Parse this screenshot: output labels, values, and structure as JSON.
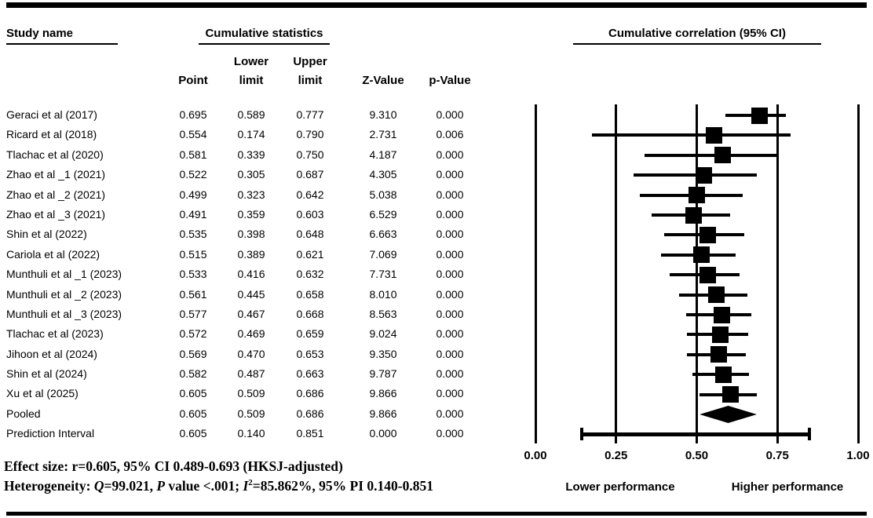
{
  "colors": {
    "ink": "#000000",
    "background": "#ffffff"
  },
  "table": {
    "header": {
      "study_name": "Study name",
      "group_title": "Cumulative statistics",
      "col_point": "Point",
      "col_lower_line1": "Lower",
      "col_lower_line2": "limit",
      "col_upper_line1": "Upper",
      "col_upper_line2": "limit",
      "col_z": "Z-Value",
      "col_p": "p-Value"
    }
  },
  "plot": {
    "title": "Cumulative correlation (95% CI)",
    "xlabel_left": "Lower performance",
    "xlabel_right": "Higher performance"
  },
  "chart_data": {
    "type": "forest",
    "title": "Cumulative correlation (95% CI)",
    "xlim": [
      0,
      1
    ],
    "x_ticks": [
      0,
      0.25,
      0.5,
      0.75,
      1
    ],
    "x_tick_labels": [
      "0.00",
      "0.25",
      "0.50",
      "0.75",
      "1.00"
    ],
    "grid": "vertical-lines-at-ticks",
    "columns": [
      "Point",
      "Lower limit",
      "Upper limit",
      "Z-Value",
      "p-Value"
    ],
    "rows": [
      {
        "name": "Geraci et al (2017)",
        "marker": "square",
        "point": "0.695",
        "lower": "0.589",
        "upper": "0.777",
        "z": "9.310",
        "p": "0.000"
      },
      {
        "name": "Ricard et al (2018)",
        "marker": "square",
        "point": "0.554",
        "lower": "0.174",
        "upper": "0.790",
        "z": "2.731",
        "p": "0.006"
      },
      {
        "name": "Tlachac et al (2020)",
        "marker": "square",
        "point": "0.581",
        "lower": "0.339",
        "upper": "0.750",
        "z": "4.187",
        "p": "0.000"
      },
      {
        "name": "Zhao et al _1 (2021)",
        "marker": "square",
        "point": "0.522",
        "lower": "0.305",
        "upper": "0.687",
        "z": "4.305",
        "p": "0.000"
      },
      {
        "name": "Zhao et al _2 (2021)",
        "marker": "square",
        "point": "0.499",
        "lower": "0.323",
        "upper": "0.642",
        "z": "5.038",
        "p": "0.000"
      },
      {
        "name": "Zhao et al _3 (2021)",
        "marker": "square",
        "point": "0.491",
        "lower": "0.359",
        "upper": "0.603",
        "z": "6.529",
        "p": "0.000"
      },
      {
        "name": "Shin et al (2022)",
        "marker": "square",
        "point": "0.535",
        "lower": "0.398",
        "upper": "0.648",
        "z": "6.663",
        "p": "0.000"
      },
      {
        "name": "Cariola et al (2022)",
        "marker": "square",
        "point": "0.515",
        "lower": "0.389",
        "upper": "0.621",
        "z": "7.069",
        "p": "0.000"
      },
      {
        "name": "Munthuli et al _1 (2023)",
        "marker": "square",
        "point": "0.533",
        "lower": "0.416",
        "upper": "0.632",
        "z": "7.731",
        "p": "0.000"
      },
      {
        "name": "Munthuli et al _2 (2023)",
        "marker": "square",
        "point": "0.561",
        "lower": "0.445",
        "upper": "0.658",
        "z": "8.010",
        "p": "0.000"
      },
      {
        "name": "Munthuli et al _3 (2023)",
        "marker": "square",
        "point": "0.577",
        "lower": "0.467",
        "upper": "0.668",
        "z": "8.563",
        "p": "0.000"
      },
      {
        "name": "Tlachac et al (2023)",
        "marker": "square",
        "point": "0.572",
        "lower": "0.469",
        "upper": "0.659",
        "z": "9.024",
        "p": "0.000"
      },
      {
        "name": "Jihoon et al (2024)",
        "marker": "square",
        "point": "0.569",
        "lower": "0.470",
        "upper": "0.653",
        "z": "9.350",
        "p": "0.000"
      },
      {
        "name": "Shin et al (2024)",
        "marker": "square",
        "point": "0.582",
        "lower": "0.487",
        "upper": "0.663",
        "z": "9.787",
        "p": "0.000"
      },
      {
        "name": "Xu et al (2025)",
        "marker": "square",
        "point": "0.605",
        "lower": "0.509",
        "upper": "0.686",
        "z": "9.866",
        "p": "0.000"
      },
      {
        "name": "Pooled",
        "marker": "diamond",
        "point": "0.605",
        "lower": "0.509",
        "upper": "0.686",
        "z": "9.866",
        "p": "0.000"
      },
      {
        "name": "Prediction Interval",
        "marker": "capped-line",
        "point": "0.605",
        "lower": "0.140",
        "upper": "0.851",
        "z": "0.000",
        "p": "0.000"
      }
    ],
    "xlabel_left": "Lower performance",
    "xlabel_right": "Higher performance",
    "annotations": [
      "Effect size: r=0.605, 95% CI 0.489-0.693 (HKSJ-adjusted)",
      "Heterogeneity: Q=99.021, P value <.001; I2=85.862%, 95% PI 0.140-0.851"
    ]
  },
  "footer": {
    "effect_size": "Effect size: r=0.605, 95% CI 0.489-0.693 (HKSJ-adjusted)",
    "heterogeneity_segments": [
      {
        "text": "Heterogeneity: ",
        "style": "normal"
      },
      {
        "text": "Q",
        "style": "italic"
      },
      {
        "text": "=99.021, ",
        "style": "normal"
      },
      {
        "text": "P",
        "style": "italic"
      },
      {
        "text": " value <.001; ",
        "style": "normal"
      },
      {
        "text": "I",
        "style": "italic"
      },
      {
        "text": "2",
        "style": "superscript"
      },
      {
        "text": "=85.862%, 95% PI 0.140-0.851",
        "style": "normal"
      }
    ]
  }
}
